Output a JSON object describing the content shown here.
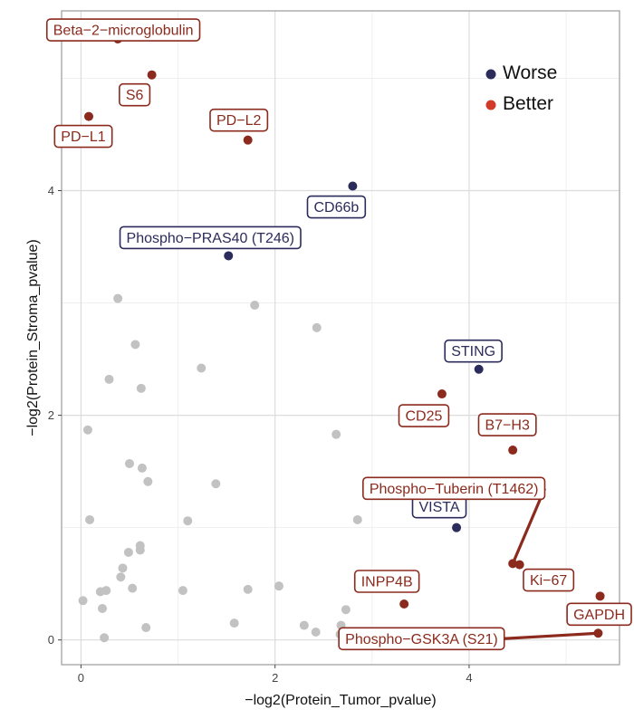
{
  "chart_data": {
    "type": "scatter",
    "xlabel": "−log2(Protein_Tumor_pvalue)",
    "ylabel": "−log2(Protein_Stroma_pvalue)",
    "xlim": [
      -0.2,
      5.55
    ],
    "ylim": [
      -0.22,
      5.6
    ],
    "x_ticks": [
      0,
      2,
      4
    ],
    "y_ticks": [
      0,
      2,
      4
    ],
    "x_tick_labels": [
      "0",
      "2",
      "4"
    ],
    "y_tick_labels": [
      "0",
      "2",
      "4"
    ],
    "grid": true,
    "colors": {
      "Worse": "#2b2b5c",
      "Better": "#8b2a1d",
      "neutral": "#c2c2c2",
      "legend_better": "#d33a2a"
    },
    "legend": {
      "position": "top-right",
      "entries": [
        {
          "label": "Worse",
          "color": "#2b2b5c"
        },
        {
          "label": "Better",
          "color": "#d33a2a"
        }
      ]
    },
    "labeled_points": [
      {
        "label": "Beta−2−microglobulin",
        "x": 0.38,
        "y": 5.35,
        "group": "Better"
      },
      {
        "label": "S6",
        "x": 0.73,
        "y": 5.03,
        "group": "Better"
      },
      {
        "label": "PD−L1",
        "x": 0.08,
        "y": 4.66,
        "group": "Better"
      },
      {
        "label": "PD−L2",
        "x": 1.72,
        "y": 4.45,
        "group": "Better"
      },
      {
        "label": "CD66b",
        "x": 2.8,
        "y": 4.04,
        "group": "Worse"
      },
      {
        "label": "Phospho−PRAS40 (T246)",
        "x": 1.52,
        "y": 3.42,
        "group": "Worse"
      },
      {
        "label": "STING",
        "x": 4.1,
        "y": 2.41,
        "group": "Worse"
      },
      {
        "label": "CD25",
        "x": 3.72,
        "y": 2.19,
        "group": "Better"
      },
      {
        "label": "B7−H3",
        "x": 4.45,
        "y": 1.69,
        "group": "Better"
      },
      {
        "label": "VISTA",
        "x": 3.87,
        "y": 1.0,
        "group": "Worse"
      },
      {
        "label": "Phospho−Tuberin (T1462)",
        "x": 4.45,
        "y": 0.68,
        "group": "Better"
      },
      {
        "label": "Ki−67",
        "x": 4.52,
        "y": 0.67,
        "group": "Better"
      },
      {
        "label": "INPP4B",
        "x": 3.33,
        "y": 0.32,
        "group": "Better"
      },
      {
        "label": "GAPDH",
        "x": 5.35,
        "y": 0.39,
        "group": "Better"
      },
      {
        "label": "Phospho−GSK3A (S21)",
        "x": 5.33,
        "y": 0.06,
        "group": "Better"
      }
    ],
    "unlabeled_points": [
      {
        "x": 0.38,
        "y": 3.04
      },
      {
        "x": 1.79,
        "y": 2.98
      },
      {
        "x": 2.43,
        "y": 2.78
      },
      {
        "x": 0.56,
        "y": 2.63
      },
      {
        "x": 1.24,
        "y": 2.42
      },
      {
        "x": 0.29,
        "y": 2.32
      },
      {
        "x": 0.62,
        "y": 2.24
      },
      {
        "x": 0.07,
        "y": 1.87
      },
      {
        "x": 2.63,
        "y": 1.83
      },
      {
        "x": 0.5,
        "y": 1.57
      },
      {
        "x": 0.63,
        "y": 1.53
      },
      {
        "x": 0.69,
        "y": 1.41
      },
      {
        "x": 1.39,
        "y": 1.39
      },
      {
        "x": 0.09,
        "y": 1.07
      },
      {
        "x": 1.1,
        "y": 1.06
      },
      {
        "x": 2.85,
        "y": 1.07
      },
      {
        "x": 0.61,
        "y": 0.84
      },
      {
        "x": 0.61,
        "y": 0.8
      },
      {
        "x": 0.49,
        "y": 0.78
      },
      {
        "x": 0.43,
        "y": 0.64
      },
      {
        "x": 0.41,
        "y": 0.56
      },
      {
        "x": 0.53,
        "y": 0.46
      },
      {
        "x": 2.04,
        "y": 0.48
      },
      {
        "x": 0.26,
        "y": 0.44
      },
      {
        "x": 0.2,
        "y": 0.43
      },
      {
        "x": 1.05,
        "y": 0.44
      },
      {
        "x": 1.72,
        "y": 0.45
      },
      {
        "x": 0.02,
        "y": 0.35
      },
      {
        "x": 0.22,
        "y": 0.28
      },
      {
        "x": 2.73,
        "y": 0.27
      },
      {
        "x": 1.58,
        "y": 0.15
      },
      {
        "x": 0.67,
        "y": 0.11
      },
      {
        "x": 2.3,
        "y": 0.13
      },
      {
        "x": 2.68,
        "y": 0.13
      },
      {
        "x": 2.42,
        "y": 0.07
      },
      {
        "x": 2.67,
        "y": 0.05
      },
      {
        "x": 0.24,
        "y": 0.02
      }
    ]
  }
}
